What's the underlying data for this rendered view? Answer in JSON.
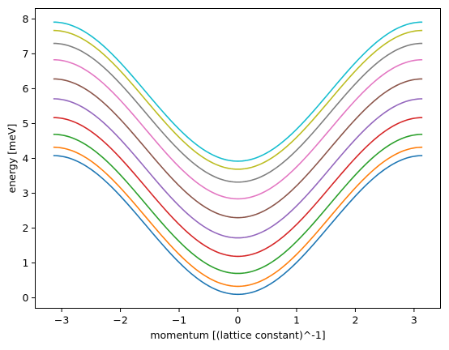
{
  "chart_data": {
    "type": "line",
    "title": "",
    "xlabel": "momentum [(lattice constant)^-1]",
    "ylabel": "energy [meV]",
    "xlim": [
      -3.45,
      3.45
    ],
    "ylim": [
      -0.3,
      8.3
    ],
    "grid": false,
    "legend": "none",
    "xticks": [
      -3,
      -2,
      -1,
      0,
      1,
      2,
      3
    ],
    "xtick_labels": [
      "−3",
      "−2",
      "−1",
      "0",
      "1",
      "2",
      "3"
    ],
    "yticks": [
      0,
      1,
      2,
      3,
      4,
      5,
      6,
      7,
      8
    ],
    "ytick_labels": [
      "0",
      "1",
      "2",
      "3",
      "4",
      "5",
      "6",
      "7",
      "8"
    ],
    "x_range": [
      -3.14159,
      3.14159
    ],
    "sample_x": [
      -3.14159,
      -2,
      -1,
      0,
      1,
      2,
      3.14159
    ],
    "series": [
      {
        "color": "#1f77b4",
        "values": [
          4.08,
          3.13,
          1.22,
          0.1,
          1.22,
          3.13,
          4.08
        ]
      },
      {
        "color": "#ff7f0e",
        "values": [
          4.32,
          3.4,
          1.48,
          0.33,
          1.48,
          3.4,
          4.32
        ]
      },
      {
        "color": "#2ca02c",
        "values": [
          4.69,
          3.79,
          1.86,
          0.7,
          1.86,
          3.79,
          4.69
        ]
      },
      {
        "color": "#d62728",
        "values": [
          5.17,
          4.28,
          2.34,
          1.19,
          2.34,
          4.28,
          5.17
        ]
      },
      {
        "color": "#9467bd",
        "values": [
          5.71,
          4.83,
          2.88,
          1.72,
          2.88,
          4.83,
          5.71
        ]
      },
      {
        "color": "#8c564b",
        "values": [
          6.28,
          5.42,
          3.45,
          2.3,
          3.45,
          5.42,
          6.28
        ]
      },
      {
        "color": "#e377c2",
        "values": [
          6.83,
          5.96,
          3.98,
          2.84,
          3.98,
          5.96,
          6.83
        ]
      },
      {
        "color": "#7f7f7f",
        "values": [
          7.3,
          6.43,
          4.46,
          3.32,
          4.46,
          6.43,
          7.3
        ]
      },
      {
        "color": "#bcbd22",
        "values": [
          7.67,
          6.8,
          4.83,
          3.69,
          4.83,
          6.8,
          7.67
        ]
      },
      {
        "color": "#17becf",
        "values": [
          7.91,
          7.04,
          5.07,
          3.92,
          5.07,
          7.04,
          7.91
        ]
      }
    ]
  }
}
